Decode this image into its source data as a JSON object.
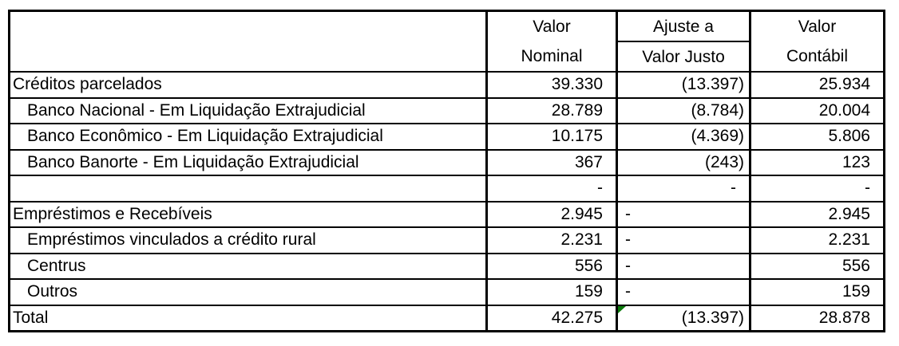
{
  "table": {
    "header": {
      "label": "",
      "col_nominal": [
        "Valor",
        "Nominal"
      ],
      "col_ajuste": [
        "Ajuste a",
        "Valor Justo"
      ],
      "col_contabil": [
        "Valor",
        "Contábil"
      ]
    },
    "rows": [
      {
        "label": "Créditos parcelados",
        "indent": false,
        "nominal": "39.330",
        "ajuste": "(13.397)",
        "contabil": "25.934"
      },
      {
        "label": "Banco Nacional - Em Liquidação Extrajudicial",
        "indent": true,
        "nominal": "28.789",
        "ajuste": "(8.784)",
        "contabil": "20.004"
      },
      {
        "label": "Banco Econômico - Em Liquidação Extrajudicial",
        "indent": true,
        "nominal": "10.175",
        "ajuste": "(4.369)",
        "contabil": "5.806"
      },
      {
        "label": "Banco Banorte - Em Liquidação Extrajudicial",
        "indent": true,
        "nominal": "367",
        "ajuste": "(243)",
        "contabil": "123"
      },
      {
        "label": "",
        "indent": false,
        "nominal": "-",
        "ajuste": "-",
        "contabil": "-"
      },
      {
        "label": "Empréstimos e Recebíveis",
        "indent": false,
        "nominal": "2.945",
        "ajuste": "-",
        "contabil": "2.945",
        "ajuste_align": "left"
      },
      {
        "label": "Empréstimos vinculados a crédito rural",
        "indent": true,
        "nominal": "2.231",
        "ajuste": "-",
        "contabil": "2.231",
        "ajuste_align": "left"
      },
      {
        "label": "Centrus",
        "indent": true,
        "nominal": "556",
        "ajuste": "-",
        "contabil": "556",
        "ajuste_align": "left"
      },
      {
        "label": "Outros",
        "indent": true,
        "nominal": "159",
        "ajuste": "-",
        "contabil": "159",
        "ajuste_align": "left"
      },
      {
        "label": "Total",
        "indent": false,
        "nominal": "42.275",
        "ajuste": "(13.397)",
        "contabil": "28.878",
        "error_marker": true
      }
    ],
    "colors": {
      "border": "#000000",
      "text": "#000000",
      "background": "#ffffff",
      "error_marker": "#0B7A0B"
    }
  }
}
